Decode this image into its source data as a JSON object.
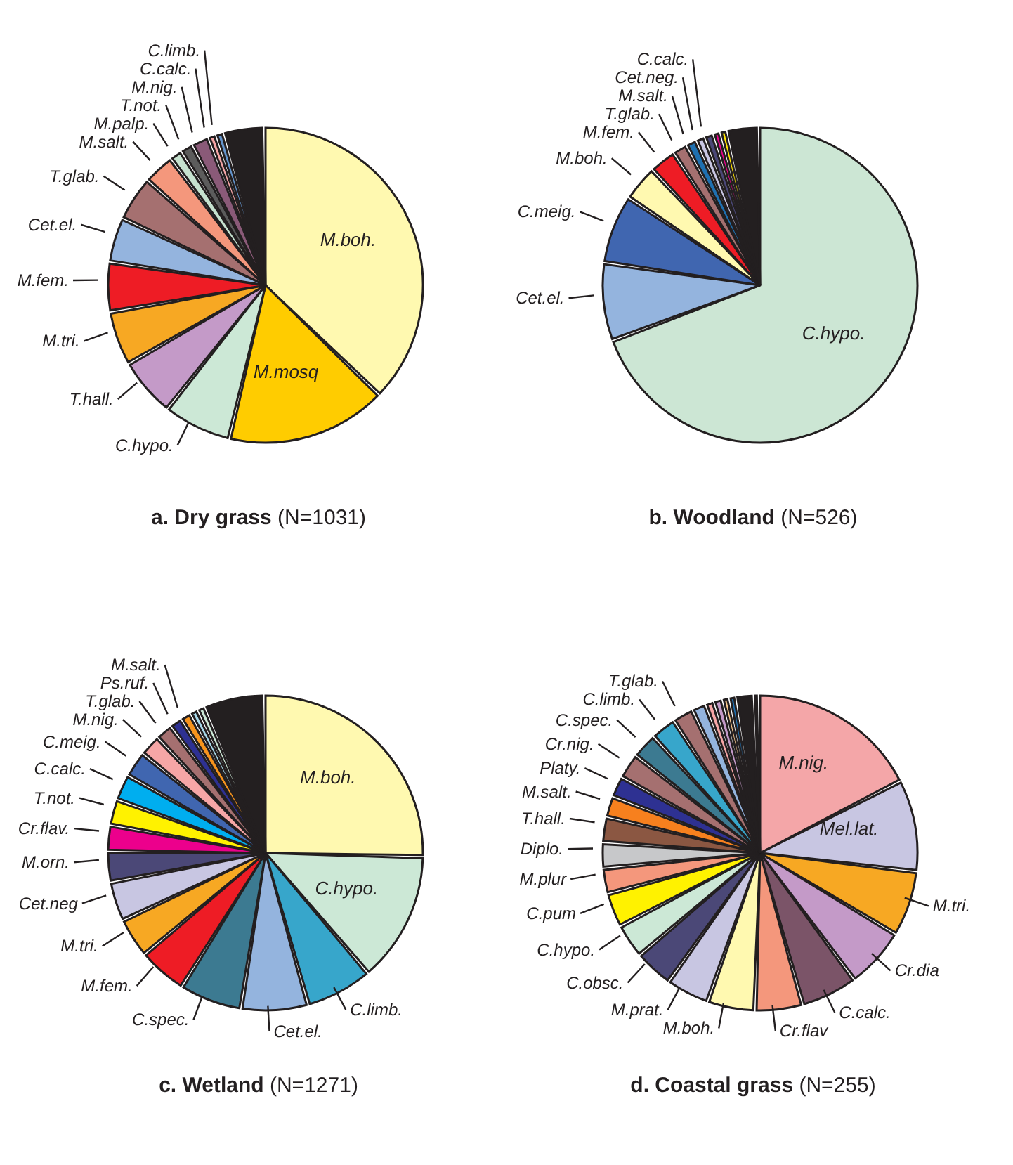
{
  "chart_data": [
    {
      "type": "pie",
      "title": "a. Dry grass",
      "subtitle": "(N=1031)",
      "categories": [
        "M.boh.",
        "M.mosq",
        "C.hypo.",
        "T.hall.",
        "M.tri.",
        "M.fem.",
        "Cet.el.",
        "T.glab.",
        "M.salt.",
        "M.palp.",
        "T.not.",
        "M.nig.",
        "C.calc.",
        "C.limb.",
        null
      ],
      "values": [
        39,
        17,
        7,
        6,
        5.5,
        5,
        4.5,
        4.5,
        3,
        1,
        1,
        1.5,
        0.5,
        0.5,
        4
      ],
      "colors": [
        "#fff9b0",
        "#ffcc00",
        "#cce8d6",
        "#c49ac8",
        "#f7a823",
        "#ee1c25",
        "#94b4de",
        "#a57070",
        "#f4977c",
        "#c6e2cf",
        "#5c5c5c",
        "#8a5a78",
        "#f6a6a6",
        "#6495cd",
        "#231f20"
      ]
    },
    {
      "type": "pie",
      "title": "b. Woodland",
      "subtitle": "(N=526)",
      "categories": [
        "C.hypo.",
        "Cet.el.",
        "C.meig.",
        "M.boh.",
        "M.fem.",
        "T.glab.",
        "M.salt.",
        "Cet.neg.",
        "C.calc.",
        null,
        null,
        null
      ],
      "values": [
        72,
        8,
        7,
        3.5,
        2.5,
        1.2,
        0.8,
        0.6,
        0.6,
        0.4,
        0.4,
        3
      ],
      "colors": [
        "#cce6d4",
        "#94b4de",
        "#4066b0",
        "#fff9b0",
        "#ee1c25",
        "#a57070",
        "#1f70b0",
        "#c8c6e2",
        "#4b4877",
        "#ec008c",
        "#ffe600",
        "#231f20"
      ]
    },
    {
      "type": "pie",
      "title": "c. Wetland",
      "subtitle": "(N=1271)",
      "categories": [
        "M.boh.",
        "C.hypo.",
        "C.limb.",
        "Cet.el.",
        "C.spec.",
        "M.fem.",
        "M.tri.",
        "Cet.neg",
        "M.orn.",
        "Cr.flav.",
        "T.not.",
        "C.calc.",
        "C.meig.",
        "M.nig.",
        "T.glab.",
        "Ps.ruf.",
        "M.salt.",
        null,
        null,
        null
      ],
      "values": [
        27,
        14,
        7,
        7,
        6.5,
        5,
        4,
        4,
        3,
        2.5,
        2.5,
        2.5,
        2.5,
        2,
        1.5,
        1,
        0.8,
        0.5,
        0.5,
        6.2
      ],
      "colors": [
        "#fff9b0",
        "#cce8d6",
        "#37a6cb",
        "#94b4de",
        "#3c7a91",
        "#ee1c25",
        "#f7a823",
        "#c8c6e2",
        "#4b4877",
        "#ec008c",
        "#fff200",
        "#00aeef",
        "#4066b0",
        "#f6a6a6",
        "#a57070",
        "#2e3192",
        "#f7941d",
        "#a8d8ea",
        "#cce8d6",
        "#231f20"
      ]
    },
    {
      "type": "pie",
      "title": "d. Coastal grass",
      "subtitle": "(N=255)",
      "categories": [
        "M.nig.",
        "Mel.lat.",
        "M.tri.",
        "Cr.dia",
        "C.calc.",
        "Cr.flav",
        "M.boh.",
        "M.prat.",
        "C.obsc.",
        "C.hypo.",
        "C.pum",
        "M.plur",
        "Diplo.",
        "T.hall.",
        "M.salt.",
        "Platy.",
        "Cr.nig.",
        "C.spec.",
        "C.limb.",
        "T.glab.",
        null,
        null,
        null,
        null,
        null,
        null,
        null
      ],
      "values": [
        19,
        10,
        7,
        6.5,
        6,
        5,
        5,
        4.5,
        4,
        3.5,
        3.5,
        2.5,
        2.5,
        2.5,
        2,
        2,
        2.5,
        2.5,
        2.5,
        2,
        1.2,
        0.6,
        0.6,
        0.4,
        0.4,
        1.6,
        0.2
      ],
      "colors": [
        "#f4a6a8",
        "#c8c6e2",
        "#f7a823",
        "#c49ac8",
        "#7b5468",
        "#f4977c",
        "#fff9b0",
        "#c8c6e2",
        "#4b4877",
        "#cce8d6",
        "#fff200",
        "#f4977c",
        "#c7c8ca",
        "#8b5742",
        "#f7801e",
        "#2e3192",
        "#a57070",
        "#3c7a91",
        "#37a6cb",
        "#a57070",
        "#94b4de",
        "#f6a6a6",
        "#c49ac8",
        "#f9c98c",
        "#1f70b0",
        "#231f20",
        "#f7a823"
      ]
    }
  ]
}
